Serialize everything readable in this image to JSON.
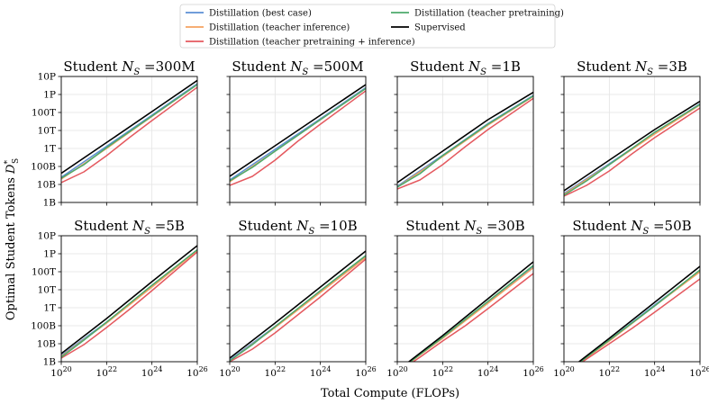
{
  "chart_data": {
    "type": "line",
    "xlabel": "Total Compute (FLOPs)",
    "ylabel": "Optimal Student Tokens D*_S",
    "ylabel_main": "Optimal Student Tokens ",
    "ylabel_sym": "D",
    "ylabel_sub": "S",
    "ylabel_sup": "*",
    "xscale": "log",
    "yscale": "log",
    "xlim_log10": [
      20,
      26
    ],
    "ylim_log10": [
      9,
      16
    ],
    "legend_position": "top-center",
    "x_ticks": [
      {
        "log": 20,
        "base": "10",
        "exp": "20"
      },
      {
        "log": 22,
        "base": "10",
        "exp": "22"
      },
      {
        "log": 24,
        "base": "10",
        "exp": "24"
      },
      {
        "log": 26,
        "base": "10",
        "exp": "26"
      }
    ],
    "y_ticks_row1": [
      {
        "log": 9,
        "label": "1B"
      },
      {
        "log": 10,
        "label": "10B"
      },
      {
        "log": 11,
        "label": "100B"
      },
      {
        "log": 12,
        "label": "1T"
      },
      {
        "log": 13,
        "label": "10T"
      },
      {
        "log": 14,
        "label": "100T"
      },
      {
        "log": 15,
        "label": "1P"
      },
      {
        "log": 16,
        "label": "10P"
      }
    ],
    "y_ticks_row2": [
      {
        "log": 9,
        "label": "1B"
      },
      {
        "log": 10,
        "label": "10B"
      },
      {
        "log": 11,
        "label": "100B"
      },
      {
        "log": 12,
        "label": "1T"
      },
      {
        "log": 13,
        "label": "10T"
      },
      {
        "log": 14,
        "label": "100T"
      },
      {
        "log": 15,
        "label": "1P"
      },
      {
        "log": 16,
        "label": "10P"
      }
    ],
    "legend": [
      {
        "key": "best",
        "label": "Distillation (best case)",
        "color": "#5b8fd4"
      },
      {
        "key": "inference",
        "label": "Distillation (teacher inference)",
        "color": "#f4a261"
      },
      {
        "key": "pretrain_inference",
        "label": "Distillation (teacher pretraining + inference)",
        "color": "#e4595f"
      },
      {
        "key": "pretrain",
        "label": "Distillation (teacher pretraining)",
        "color": "#4daa6c"
      },
      {
        "key": "supervised",
        "label": "Supervised",
        "color": "#000000"
      }
    ],
    "panels": [
      {
        "title_prefix": "Student ",
        "title_sym": "N",
        "title_sub": "S",
        "title_value": " =300M",
        "series": {
          "supervised": [
            [
              20,
              10.62
            ],
            [
              22,
              12.33
            ],
            [
              24,
              14.05
            ],
            [
              26,
              15.78
            ]
          ],
          "best": [
            [
              20,
              10.4
            ],
            [
              22,
              12.12
            ],
            [
              24,
              13.85
            ],
            [
              26,
              15.6
            ]
          ],
          "inference": [
            [
              20,
              10.3
            ],
            [
              22,
              12.0
            ],
            [
              24,
              13.78
            ],
            [
              26,
              15.55
            ]
          ],
          "pretrain": [
            [
              20,
              10.35
            ],
            [
              21,
              11.1
            ],
            [
              22,
              12.05
            ],
            [
              24,
              13.8
            ],
            [
              26,
              15.55
            ]
          ],
          "pretrain_inference": [
            [
              20,
              10.1
            ],
            [
              21,
              10.7
            ],
            [
              22,
              11.6
            ],
            [
              23,
              12.6
            ],
            [
              24,
              13.55
            ],
            [
              26,
              15.4
            ]
          ]
        }
      },
      {
        "title_prefix": "Student ",
        "title_sym": "N",
        "title_sub": "S",
        "title_value": " =500M",
        "series": {
          "supervised": [
            [
              20,
              10.45
            ],
            [
              22,
              12.15
            ],
            [
              24,
              13.85
            ],
            [
              26,
              15.55
            ]
          ],
          "best": [
            [
              20,
              10.25
            ],
            [
              22,
              11.95
            ],
            [
              24,
              13.65
            ],
            [
              26,
              15.38
            ]
          ],
          "inference": [
            [
              20,
              10.15
            ],
            [
              22,
              11.85
            ],
            [
              24,
              13.6
            ],
            [
              26,
              15.33
            ]
          ],
          "pretrain": [
            [
              20,
              10.2
            ],
            [
              21,
              10.95
            ],
            [
              22,
              11.85
            ],
            [
              24,
              13.6
            ],
            [
              26,
              15.33
            ]
          ],
          "pretrain_inference": [
            [
              20,
              9.95
            ],
            [
              21,
              10.45
            ],
            [
              22,
              11.35
            ],
            [
              23,
              12.4
            ],
            [
              24,
              13.35
            ],
            [
              26,
              15.2
            ]
          ]
        }
      },
      {
        "title_prefix": "Student ",
        "title_sym": "N",
        "title_sub": "S",
        "title_value": " =1B",
        "series": {
          "supervised": [
            [
              20,
              10.1
            ],
            [
              22,
              11.85
            ],
            [
              24,
              13.6
            ],
            [
              26,
              15.12
            ]
          ],
          "best": [
            [
              20,
              9.9
            ],
            [
              22,
              11.62
            ],
            [
              24,
              13.38
            ],
            [
              26,
              14.95
            ]
          ],
          "inference": [
            [
              20,
              9.85
            ],
            [
              22,
              11.55
            ],
            [
              24,
              13.3
            ],
            [
              26,
              14.9
            ]
          ],
          "pretrain": [
            [
              20,
              9.85
            ],
            [
              21,
              10.6
            ],
            [
              22,
              11.6
            ],
            [
              24,
              13.35
            ],
            [
              26,
              14.92
            ]
          ],
          "pretrain_inference": [
            [
              20,
              9.75
            ],
            [
              21,
              10.25
            ],
            [
              22,
              11.1
            ],
            [
              23,
              12.1
            ],
            [
              24,
              13.05
            ],
            [
              26,
              14.78
            ]
          ]
        }
      },
      {
        "title_prefix": "Student ",
        "title_sym": "N",
        "title_sub": "S",
        "title_value": " =3B",
        "series": {
          "supervised": [
            [
              20,
              9.65
            ],
            [
              22,
              11.35
            ],
            [
              24,
              13.05
            ],
            [
              26,
              14.62
            ]
          ],
          "best": [
            [
              20,
              9.5
            ],
            [
              22,
              11.15
            ],
            [
              24,
              12.85
            ],
            [
              26,
              14.48
            ]
          ],
          "inference": [
            [
              20,
              9.45
            ],
            [
              22,
              11.1
            ],
            [
              24,
              12.8
            ],
            [
              26,
              14.42
            ]
          ],
          "pretrain": [
            [
              20,
              9.4
            ],
            [
              21,
              10.2
            ],
            [
              22,
              11.1
            ],
            [
              24,
              12.9
            ],
            [
              26,
              14.45
            ]
          ],
          "pretrain_inference": [
            [
              20,
              9.35
            ],
            [
              21,
              9.95
            ],
            [
              22,
              10.75
            ],
            [
              23,
              11.7
            ],
            [
              24,
              12.6
            ],
            [
              26,
              14.25
            ]
          ]
        }
      },
      {
        "title_prefix": "Student ",
        "title_sym": "N",
        "title_sub": "S",
        "title_value": " =5B",
        "series": {
          "supervised": [
            [
              20,
              9.45
            ],
            [
              22,
              11.4
            ],
            [
              24,
              13.45
            ],
            [
              26,
              15.45
            ]
          ],
          "best": [
            [
              20,
              9.35
            ],
            [
              22,
              11.2
            ],
            [
              24,
              13.2
            ],
            [
              26,
              15.22
            ]
          ],
          "inference": [
            [
              20,
              9.3
            ],
            [
              22,
              11.15
            ],
            [
              24,
              13.15
            ],
            [
              26,
              15.18
            ]
          ],
          "pretrain": [
            [
              20,
              9.25
            ],
            [
              21,
              10.2
            ],
            [
              22,
              11.2
            ],
            [
              24,
              13.25
            ],
            [
              26,
              15.22
            ]
          ],
          "pretrain_inference": [
            [
              20,
              9.2
            ],
            [
              21,
              9.95
            ],
            [
              22,
              10.9
            ],
            [
              23,
              11.9
            ],
            [
              24,
              12.95
            ],
            [
              26,
              15.1
            ]
          ]
        }
      },
      {
        "title_prefix": "Student ",
        "title_sym": "N",
        "title_sub": "S",
        "title_value": " =10B",
        "series": {
          "supervised": [
            [
              20,
              9.2
            ],
            [
              22,
              11.15
            ],
            [
              24,
              13.15
            ],
            [
              26,
              15.15
            ]
          ],
          "best": [
            [
              20,
              9.1
            ],
            [
              22,
              10.95
            ],
            [
              24,
              12.9
            ],
            [
              26,
              14.85
            ]
          ],
          "inference": [
            [
              20,
              9.05
            ],
            [
              22,
              10.9
            ],
            [
              24,
              12.85
            ],
            [
              26,
              14.8
            ]
          ],
          "pretrain": [
            [
              20,
              9.05
            ],
            [
              21,
              9.95
            ],
            [
              22,
              10.95
            ],
            [
              24,
              12.95
            ],
            [
              26,
              14.9
            ]
          ],
          "pretrain_inference": [
            [
              20,
              9.0
            ],
            [
              21,
              9.7
            ],
            [
              22,
              10.6
            ],
            [
              23,
              11.6
            ],
            [
              24,
              12.6
            ],
            [
              26,
              14.7
            ]
          ]
        }
      },
      {
        "title_prefix": "Student ",
        "title_sym": "N",
        "title_sub": "S",
        "title_value": " =30B",
        "series": {
          "supervised": [
            [
              20,
              8.5
            ],
            [
              22,
              10.45
            ],
            [
              24,
              12.5
            ],
            [
              26,
              14.55
            ]
          ],
          "best": [
            [
              20,
              8.5
            ],
            [
              22,
              10.35
            ],
            [
              24,
              12.3
            ],
            [
              26,
              14.28
            ]
          ],
          "inference": [
            [
              20,
              8.45
            ],
            [
              22,
              10.3
            ],
            [
              24,
              12.25
            ],
            [
              26,
              14.22
            ]
          ],
          "pretrain": [
            [
              20,
              8.45
            ],
            [
              22,
              10.35
            ],
            [
              24,
              12.35
            ],
            [
              26,
              14.35
            ]
          ],
          "pretrain_inference": [
            [
              20,
              8.4
            ],
            [
              21,
              9.25
            ],
            [
              22,
              10.15
            ],
            [
              23,
              11.0
            ],
            [
              24,
              11.95
            ],
            [
              26,
              13.9
            ]
          ]
        }
      },
      {
        "title_prefix": "Student ",
        "title_sym": "N",
        "title_sub": "S",
        "title_value": " =50B",
        "series": {
          "supervised": [
            [
              20,
              8.35
            ],
            [
              22,
              10.3
            ],
            [
              24,
              12.3
            ],
            [
              26,
              14.3
            ]
          ],
          "best": [
            [
              20,
              8.35
            ],
            [
              22,
              10.2
            ],
            [
              24,
              12.15
            ],
            [
              26,
              14.05
            ]
          ],
          "inference": [
            [
              20,
              8.3
            ],
            [
              22,
              10.15
            ],
            [
              24,
              12.1
            ],
            [
              26,
              14.0
            ]
          ],
          "pretrain": [
            [
              20,
              8.3
            ],
            [
              22,
              10.2
            ],
            [
              24,
              12.1
            ],
            [
              26,
              14.1
            ]
          ],
          "pretrain_inference": [
            [
              20,
              8.3
            ],
            [
              21,
              9.15
            ],
            [
              22,
              10.0
            ],
            [
              23,
              10.85
            ],
            [
              24,
              11.75
            ],
            [
              26,
              13.6
            ]
          ]
        }
      }
    ]
  }
}
